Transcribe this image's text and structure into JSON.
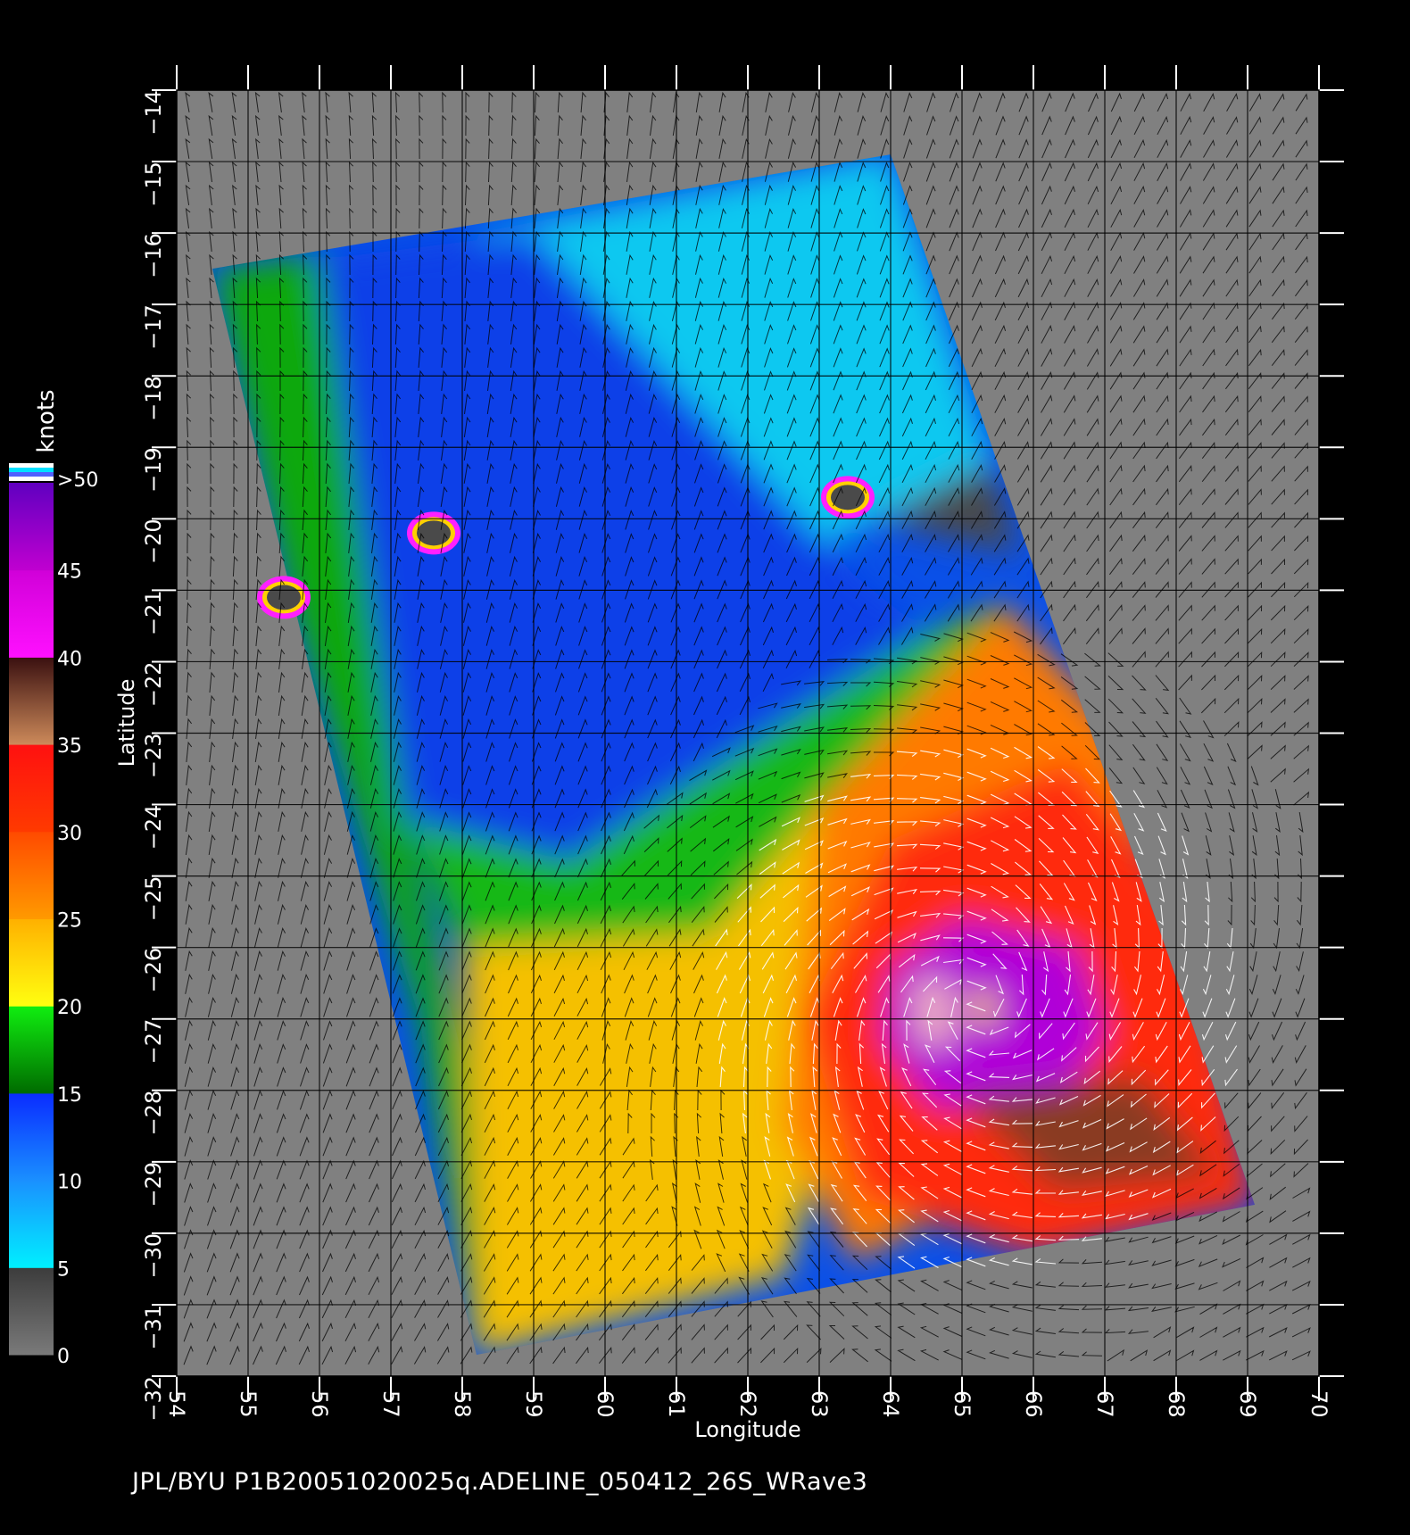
{
  "caption": "JPL/BYU  P1B20051020025q.ADELINE_050412_26S_WRave3",
  "axes": {
    "xlabel": "Longitude",
    "ylabel": "Latitude",
    "x_ticks": [
      "54",
      "55",
      "56",
      "57",
      "58",
      "59",
      "60",
      "61",
      "62",
      "63",
      "64",
      "65",
      "66",
      "67",
      "68",
      "69",
      "70"
    ],
    "y_ticks": [
      "-14",
      "-15",
      "-16",
      "-17",
      "-18",
      "-19",
      "-20",
      "-21",
      "-22",
      "-23",
      "-24",
      "-25",
      "-26",
      "-27",
      "-28",
      "-29",
      "-30",
      "-31",
      "-32"
    ]
  },
  "colorbar": {
    "title": "knots",
    "labels": [
      ">50",
      "45",
      "40",
      "35",
      "30",
      "25",
      "20",
      "15",
      "10",
      "5",
      "0"
    ],
    "bands": [
      {
        "from": 0,
        "to": 5,
        "colors": [
          "#7a7a7a",
          "#3c3c3c"
        ]
      },
      {
        "from": 5,
        "to": 10,
        "colors": [
          "#00f0ff",
          "#1a90ff"
        ]
      },
      {
        "from": 10,
        "to": 15,
        "colors": [
          "#1a90ff",
          "#0a2cff"
        ]
      },
      {
        "from": 15,
        "to": 20,
        "colors": [
          "#006b00",
          "#10ee10"
        ]
      },
      {
        "from": 20,
        "to": 25,
        "colors": [
          "#ffff10",
          "#ffb000"
        ]
      },
      {
        "from": 25,
        "to": 30,
        "colors": [
          "#ff9a00",
          "#ff4a00"
        ]
      },
      {
        "from": 30,
        "to": 35,
        "colors": [
          "#ff3a00",
          "#ff1010"
        ]
      },
      {
        "from": 35,
        "to": 40,
        "colors": [
          "#cd8a5a",
          "#3a1010"
        ]
      },
      {
        "from": 40,
        "to": 45,
        "colors": [
          "#ff10ff",
          "#d000d8"
        ]
      },
      {
        "from": 45,
        "to": 50,
        "colors": [
          "#c000d0",
          "#6000c0"
        ]
      }
    ],
    "top_stripes": [
      "#ffffff",
      "#00e0ff",
      "#5060ff",
      "#ffffff"
    ]
  },
  "map": {
    "x_range": [
      54,
      70
    ],
    "y_range": [
      -14,
      -32
    ],
    "background_color": "#808080",
    "swath_corners_lonlat": [
      [
        54.5,
        -16.5
      ],
      [
        64.0,
        -14.9
      ],
      [
        69.1,
        -29.6
      ],
      [
        58.2,
        -31.7
      ]
    ],
    "storm": {
      "name": "ADELINE",
      "center_lonlat": [
        65.2,
        -26.8
      ]
    },
    "islands_lonlat": [
      [
        57.6,
        -20.2
      ],
      [
        55.5,
        -21.1
      ],
      [
        63.4,
        -19.7
      ]
    ],
    "color_regions": [
      {
        "name": "low-wind-dark",
        "color": "#4a4a4a",
        "lonlat": [
          [
            61.8,
            -15.6
          ],
          [
            64.0,
            -14.9
          ],
          [
            65.8,
            -20.5
          ],
          [
            63.0,
            -19.8
          ],
          [
            61.2,
            -18.0
          ]
        ]
      },
      {
        "name": "cyan-region",
        "color": "#10c8f0",
        "lonlat": [
          [
            58.2,
            -16.0
          ],
          [
            64.0,
            -14.9
          ],
          [
            65.4,
            -19.2
          ],
          [
            63.0,
            -20.4
          ],
          [
            60.0,
            -19.6
          ]
        ]
      },
      {
        "name": "blue-region",
        "color": "#0a40e8",
        "lonlat": [
          [
            55.0,
            -16.5
          ],
          [
            59.0,
            -16.0
          ],
          [
            63.5,
            -20.8
          ],
          [
            64.5,
            -21.6
          ],
          [
            62.0,
            -23.2
          ],
          [
            59.5,
            -24.8
          ],
          [
            57.2,
            -24.2
          ]
        ]
      },
      {
        "name": "green-west",
        "color": "#10a810",
        "lonlat": [
          [
            54.5,
            -16.5
          ],
          [
            56.0,
            -16.3
          ],
          [
            57.2,
            -24.2
          ],
          [
            58.0,
            -27.5
          ],
          [
            58.2,
            -31.7
          ],
          [
            57.4,
            -27.0
          ],
          [
            55.6,
            -21.2
          ]
        ]
      },
      {
        "name": "green-mid",
        "color": "#18b818",
        "lonlat": [
          [
            57.2,
            -24.2
          ],
          [
            59.5,
            -24.8
          ],
          [
            62.0,
            -23.2
          ],
          [
            64.5,
            -21.6
          ],
          [
            65.6,
            -21.2
          ],
          [
            63.0,
            -24.0
          ],
          [
            61.5,
            -25.8
          ],
          [
            58.0,
            -26.0
          ]
        ]
      },
      {
        "name": "yellow-region",
        "color": "#f5c000",
        "lonlat": [
          [
            58.0,
            -26.0
          ],
          [
            61.5,
            -25.8
          ],
          [
            63.0,
            -24.0
          ],
          [
            65.6,
            -21.2
          ],
          [
            66.5,
            -22.6
          ],
          [
            63.5,
            -27.5
          ],
          [
            62.5,
            -30.6
          ],
          [
            58.2,
            -31.7
          ]
        ]
      },
      {
        "name": "orange-region",
        "color": "#ff7a00",
        "lonlat": [
          [
            63.0,
            -24.0
          ],
          [
            65.6,
            -21.2
          ],
          [
            67.2,
            -23.0
          ],
          [
            68.0,
            -26.0
          ],
          [
            66.0,
            -29.0
          ],
          [
            63.5,
            -30.4
          ],
          [
            62.5,
            -28.5
          ]
        ]
      },
      {
        "name": "red-region",
        "color": "#ff2a10",
        "lonlat": [
          [
            64.0,
            -24.5
          ],
          [
            66.5,
            -23.4
          ],
          [
            68.3,
            -25.5
          ],
          [
            69.1,
            -29.6
          ],
          [
            66.0,
            -30.3
          ],
          [
            63.6,
            -29.5
          ],
          [
            62.8,
            -27.0
          ]
        ]
      },
      {
        "name": "purple-eyewall",
        "color": "#b000d8",
        "lonlat": [
          [
            64.0,
            -26.3
          ],
          [
            65.0,
            -25.6
          ],
          [
            66.6,
            -26.0
          ],
          [
            67.0,
            -27.2
          ],
          [
            66.2,
            -28.4
          ],
          [
            64.6,
            -28.2
          ],
          [
            63.9,
            -27.3
          ]
        ]
      },
      {
        "name": "brown-band",
        "color": "#8a3a20",
        "lonlat": [
          [
            65.0,
            -28.1
          ],
          [
            67.5,
            -27.8
          ],
          [
            68.6,
            -29.2
          ],
          [
            66.3,
            -29.4
          ]
        ]
      },
      {
        "name": "eye-light",
        "color": "#f0b0c0",
        "lonlat": [
          [
            64.3,
            -26.5
          ],
          [
            64.8,
            -26.4
          ],
          [
            64.9,
            -27.3
          ],
          [
            64.4,
            -27.4
          ]
        ]
      },
      {
        "name": "eye-yellow",
        "color": "#ffd000",
        "lonlat": [
          [
            65.1,
            -26.7
          ],
          [
            65.4,
            -26.6
          ],
          [
            65.5,
            -27.0
          ],
          [
            65.2,
            -27.1
          ]
        ]
      }
    ]
  }
}
